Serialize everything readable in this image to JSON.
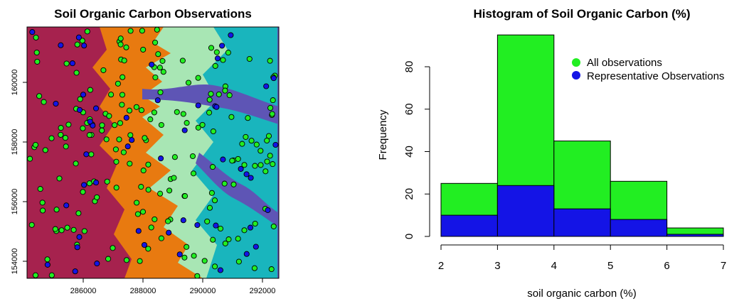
{
  "map": {
    "title": "Soil Organic Carbon Observations",
    "xticks": [
      "286000",
      "288000",
      "290000",
      "292000"
    ],
    "yticks": [
      "154000",
      "156000",
      "158000",
      "160000"
    ]
  },
  "colors": {
    "all": "#22ee22",
    "rep": "#1414e6",
    "zones": [
      "#a6224e",
      "#e87a10",
      "#a8e6b4",
      "#19b5bd",
      "#5e55b5"
    ]
  },
  "chart_data": {
    "type": "histogram",
    "title": "Histogram of Soil Organic Carbon (%)",
    "xlabel": "soil organic carbon (%)",
    "ylabel": "Frequency",
    "bins": [
      2,
      3,
      4,
      5,
      6,
      7
    ],
    "xticks": [
      2,
      3,
      4,
      5,
      6,
      7
    ],
    "yticks": [
      0,
      20,
      40,
      60,
      80
    ],
    "ylim": [
      0,
      95
    ],
    "series": [
      {
        "name": "All observations",
        "values": [
          25,
          95,
          45,
          26,
          4
        ]
      },
      {
        "name": "Representative Observations",
        "values": [
          10,
          24,
          13,
          8,
          1
        ]
      }
    ],
    "legend_position": "top-right"
  }
}
